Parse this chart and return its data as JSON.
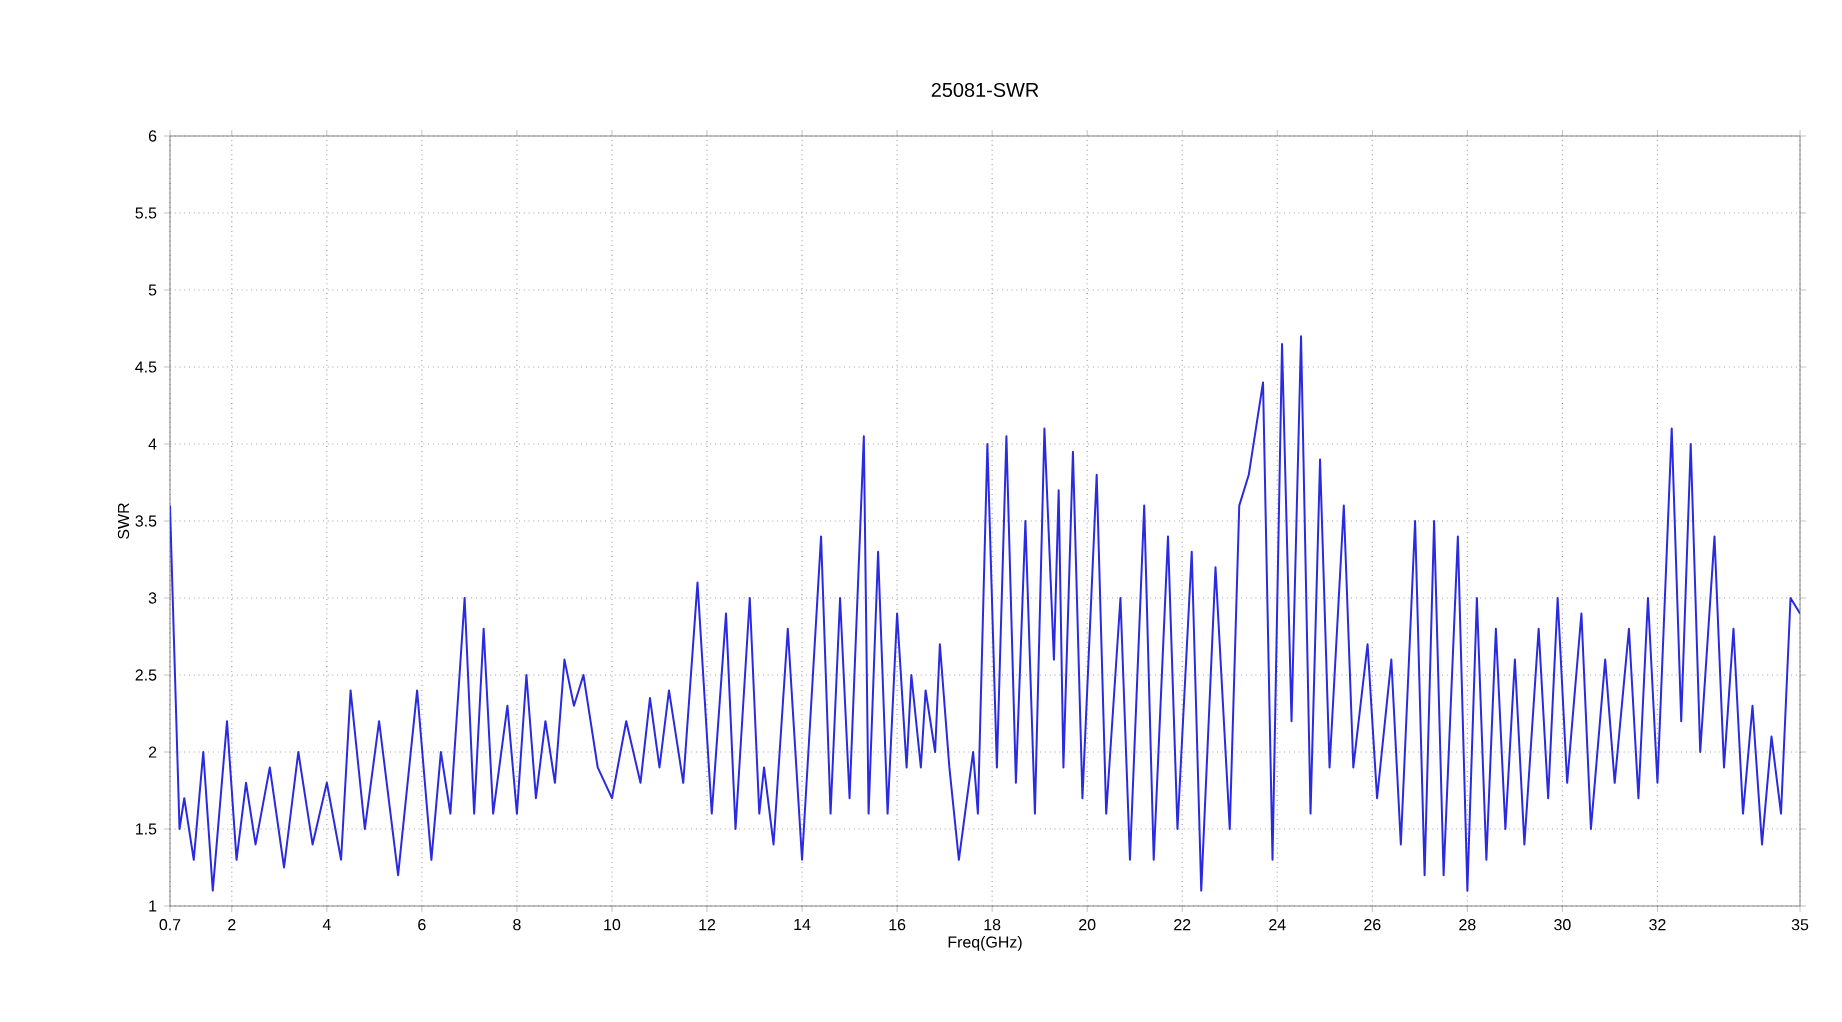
{
  "chart_data": {
    "type": "line",
    "title": "25081-SWR",
    "xlabel": "Freq(GHz)",
    "ylabel": "SWR",
    "xlim": [
      0.7,
      35
    ],
    "ylim": [
      1,
      6
    ],
    "xticks": [
      0.7,
      2,
      4,
      6,
      8,
      10,
      12,
      14,
      16,
      18,
      20,
      22,
      24,
      26,
      28,
      30,
      32,
      35
    ],
    "yticks": [
      1,
      1.5,
      2,
      2.5,
      3,
      3.5,
      4,
      4.5,
      5,
      5.5,
      6
    ],
    "grid": true,
    "marker": "none",
    "line_style": "solid",
    "series": [
      {
        "color": "#2a2ae0",
        "x": [
          0.7,
          0.9,
          1.0,
          1.2,
          1.4,
          1.6,
          1.9,
          2.1,
          2.3,
          2.5,
          2.8,
          3.1,
          3.4,
          3.7,
          4.0,
          4.3,
          4.5,
          4.8,
          5.1,
          5.5,
          5.9,
          6.2,
          6.4,
          6.6,
          6.9,
          7.1,
          7.3,
          7.5,
          7.8,
          8.0,
          8.2,
          8.4,
          8.6,
          8.8,
          9.0,
          9.2,
          9.4,
          9.7,
          10.0,
          10.3,
          10.6,
          10.8,
          11.0,
          11.2,
          11.5,
          11.8,
          12.1,
          12.4,
          12.6,
          12.9,
          13.1,
          13.2,
          13.4,
          13.7,
          14.0,
          14.4,
          14.6,
          14.8,
          15.0,
          15.3,
          15.4,
          15.6,
          15.8,
          16.0,
          16.2,
          16.3,
          16.5,
          16.6,
          16.8,
          16.9,
          17.1,
          17.3,
          17.6,
          17.7,
          17.9,
          18.1,
          18.3,
          18.5,
          18.7,
          18.9,
          19.1,
          19.3,
          19.4,
          19.5,
          19.7,
          19.9,
          20.2,
          20.4,
          20.7,
          20.9,
          21.2,
          21.4,
          21.7,
          21.9,
          22.2,
          22.4,
          22.7,
          23.0,
          23.2,
          23.4,
          23.7,
          23.9,
          24.1,
          24.3,
          24.5,
          24.7,
          24.9,
          25.1,
          25.4,
          25.6,
          25.9,
          26.1,
          26.4,
          26.6,
          26.9,
          27.1,
          27.3,
          27.5,
          27.8,
          28.0,
          28.2,
          28.4,
          28.6,
          28.8,
          29.0,
          29.2,
          29.5,
          29.7,
          29.9,
          30.1,
          30.4,
          30.6,
          30.9,
          31.1,
          31.4,
          31.6,
          31.8,
          32.0,
          32.3,
          32.5,
          32.7,
          32.9,
          33.2,
          33.4,
          33.6,
          33.8,
          34.0,
          34.2,
          34.4,
          34.6,
          34.8,
          35.0
        ],
        "values": [
          3.6,
          1.5,
          1.7,
          1.3,
          2.0,
          1.1,
          2.2,
          1.3,
          1.8,
          1.4,
          1.9,
          1.25,
          2.0,
          1.4,
          1.8,
          1.3,
          2.4,
          1.5,
          2.2,
          1.2,
          2.4,
          1.3,
          2.0,
          1.6,
          3.0,
          1.6,
          2.8,
          1.6,
          2.3,
          1.6,
          2.5,
          1.7,
          2.2,
          1.8,
          2.6,
          2.3,
          2.5,
          1.9,
          1.7,
          2.2,
          1.8,
          2.35,
          1.9,
          2.4,
          1.8,
          3.1,
          1.6,
          2.9,
          1.5,
          3.0,
          1.6,
          1.9,
          1.4,
          2.8,
          1.3,
          3.4,
          1.6,
          3.0,
          1.7,
          4.05,
          1.6,
          3.3,
          1.6,
          2.9,
          1.9,
          2.5,
          1.9,
          2.4,
          2.0,
          2.7,
          1.9,
          1.3,
          2.0,
          1.6,
          4.0,
          1.9,
          4.05,
          1.8,
          3.5,
          1.6,
          4.1,
          2.6,
          3.7,
          1.9,
          3.95,
          1.7,
          3.8,
          1.6,
          3.0,
          1.3,
          3.6,
          1.3,
          3.4,
          1.5,
          3.3,
          1.1,
          3.2,
          1.5,
          3.6,
          3.8,
          4.4,
          1.3,
          4.65,
          2.2,
          4.7,
          1.6,
          3.9,
          1.9,
          3.6,
          1.9,
          2.7,
          1.7,
          2.6,
          1.4,
          3.5,
          1.2,
          3.5,
          1.2,
          3.4,
          1.1,
          3.0,
          1.3,
          2.8,
          1.5,
          2.6,
          1.4,
          2.8,
          1.7,
          3.0,
          1.8,
          2.9,
          1.5,
          2.6,
          1.8,
          2.8,
          1.7,
          3.0,
          1.8,
          4.1,
          2.2,
          4.0,
          2.0,
          3.4,
          1.9,
          2.8,
          1.6,
          2.3,
          1.4,
          2.1,
          1.6,
          3.0,
          2.9
        ]
      }
    ]
  }
}
